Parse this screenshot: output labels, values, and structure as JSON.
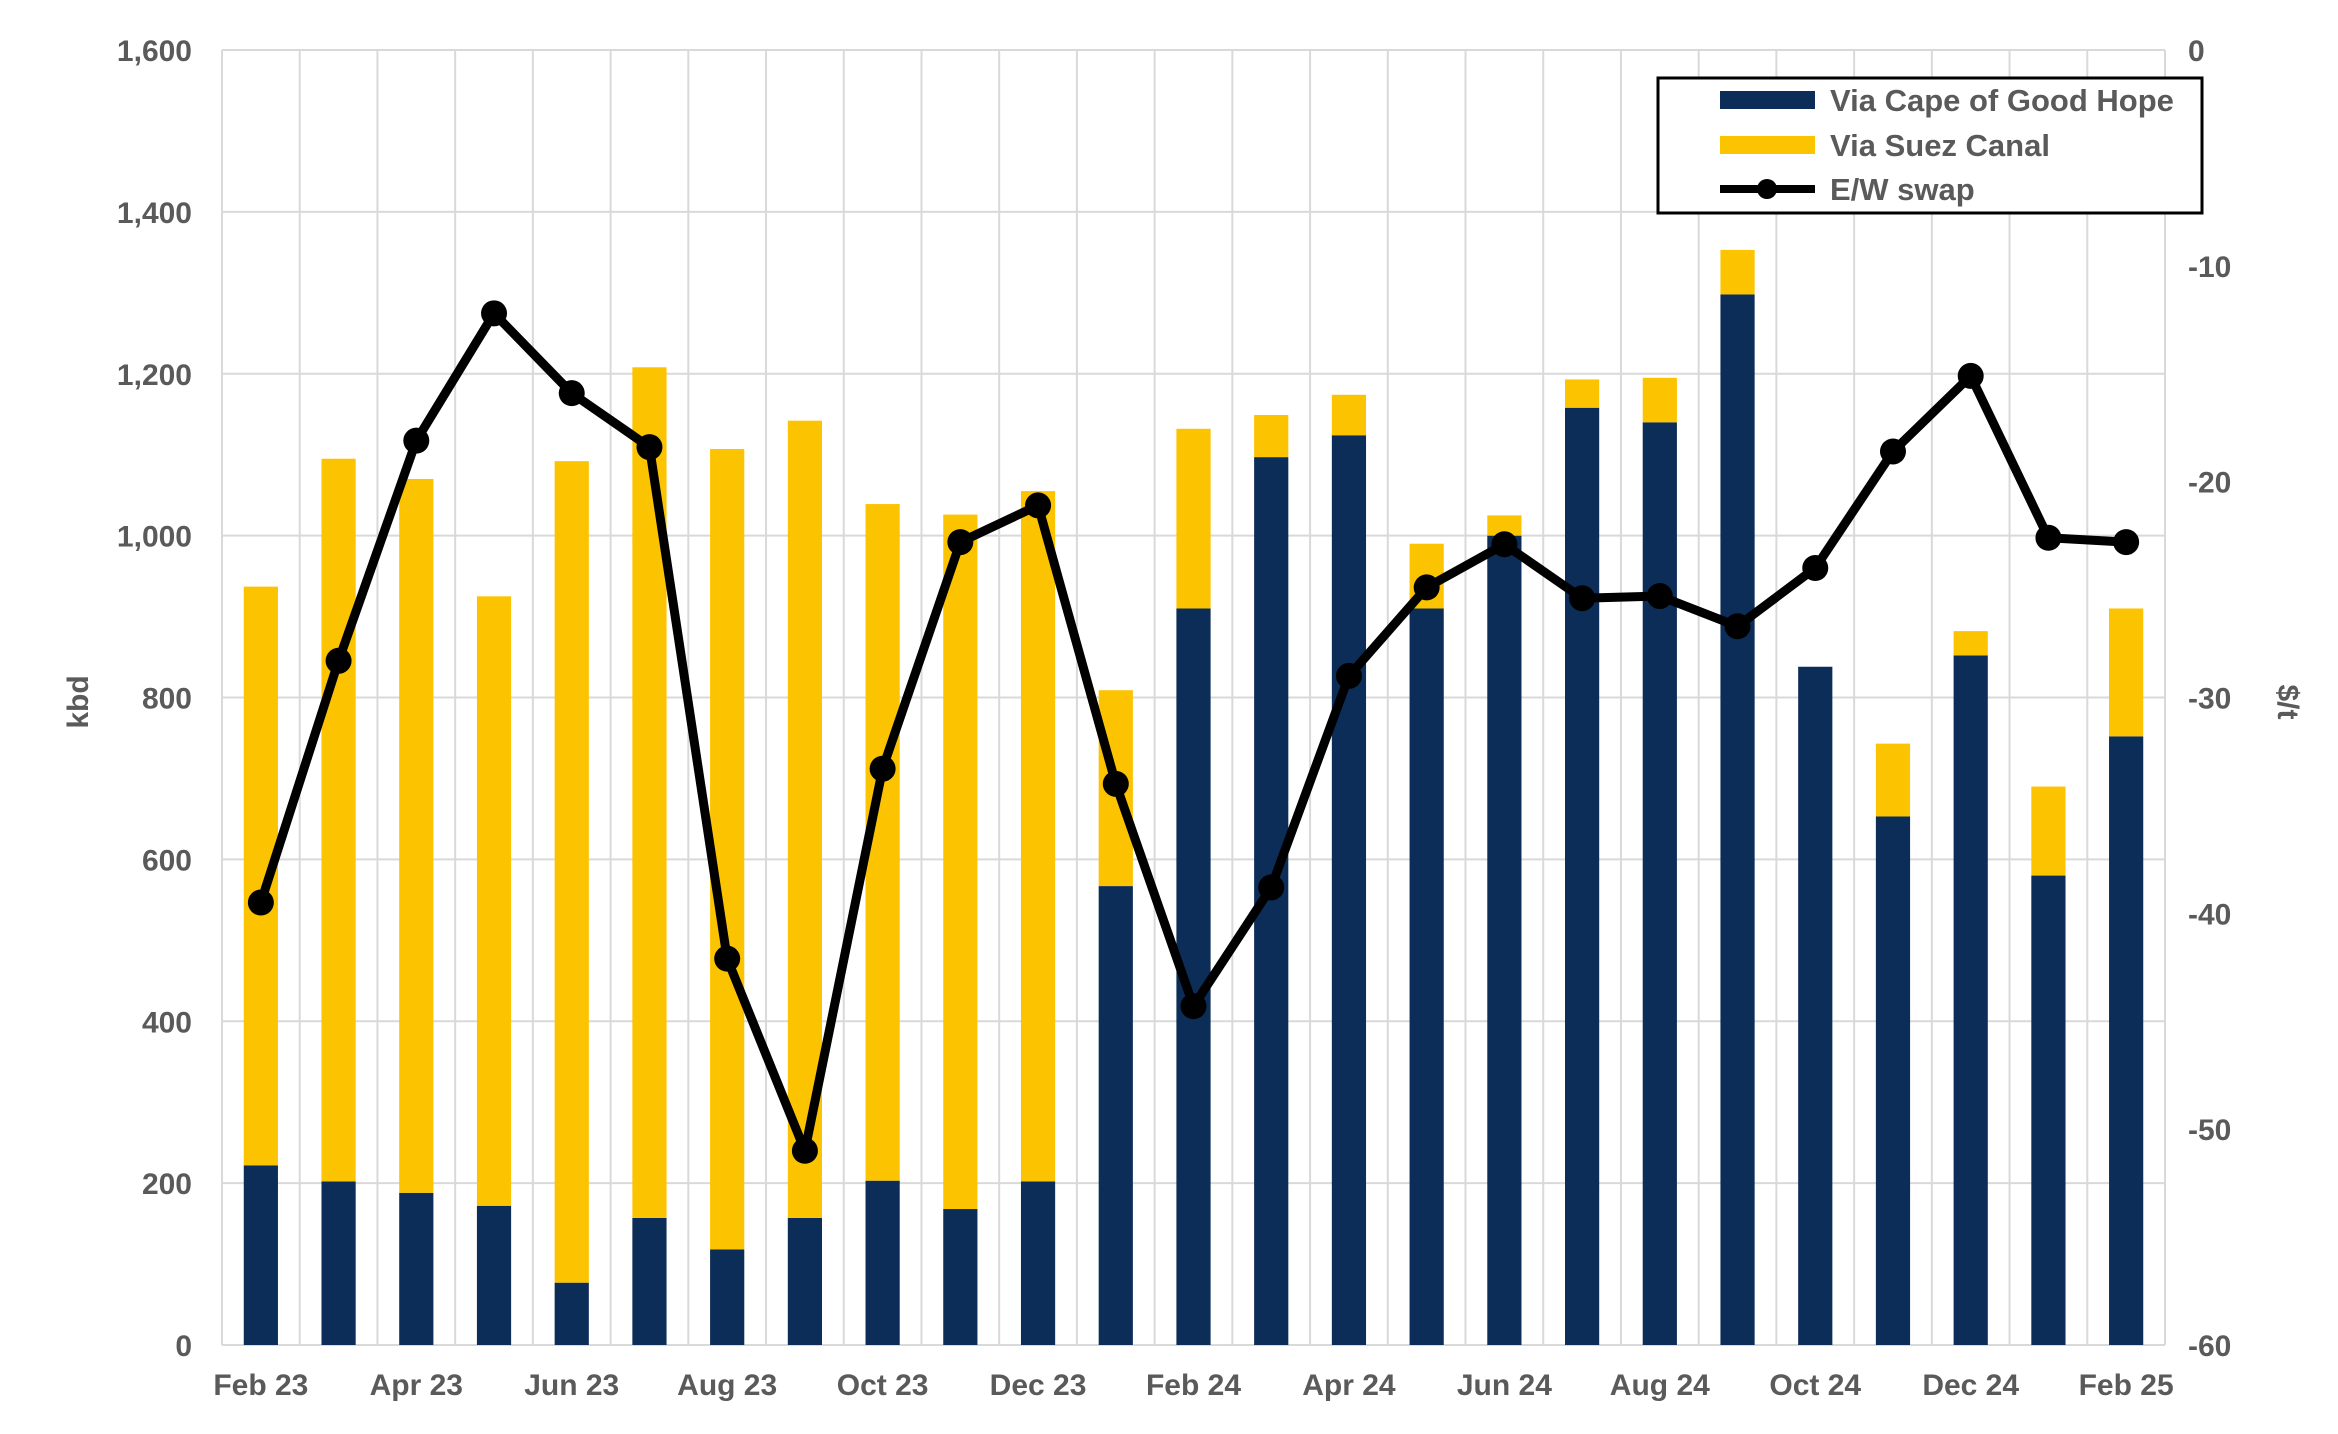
{
  "colors": {
    "cape": "#0c2d57",
    "suez": "#fcc300",
    "swap": "#000000",
    "grid": "#d9d9d9",
    "text": "#5a5a5a"
  },
  "chart_data": {
    "type": "bar",
    "stacked": true,
    "title": "",
    "categories": [
      "Feb 23",
      "Mar 23",
      "Apr 23",
      "May 23",
      "Jun 23",
      "Jul 23",
      "Aug 23",
      "Sep 23",
      "Oct 23",
      "Nov 23",
      "Dec 23",
      "Jan 24",
      "Feb 24",
      "Mar 24",
      "Apr 24",
      "May 24",
      "Jun 24",
      "Jul 24",
      "Aug 24",
      "Sep 24",
      "Oct 24",
      "Nov 24",
      "Dec 24",
      "Jan 25",
      "Feb 25"
    ],
    "xtick_labels": [
      "Feb 23",
      "",
      "Apr 23",
      "",
      "Jun 23",
      "",
      "Aug 23",
      "",
      "Oct 23",
      "",
      "Dec 23",
      "",
      "Feb 24",
      "",
      "Apr 24",
      "",
      "Jun 24",
      "",
      "Aug 24",
      "",
      "Oct 24",
      "",
      "Dec 24",
      "",
      "Feb 25"
    ],
    "ylabel": "kbd",
    "y2label": "$/t",
    "ylim": [
      0,
      1600
    ],
    "y2lim": [
      -60,
      0
    ],
    "yticks": [
      0,
      200,
      400,
      600,
      800,
      1000,
      1200,
      1400,
      1600
    ],
    "yticks_labels": [
      "0",
      "200",
      "400",
      "600",
      "800",
      "1,000",
      "1,200",
      "1,400",
      "1,600"
    ],
    "y2ticks": [
      0,
      -10,
      -20,
      -30,
      -40,
      -50,
      -60
    ],
    "y2ticks_labels": [
      "0",
      "-10",
      "-20",
      "-30",
      "-40",
      "-50",
      "-60"
    ],
    "grid": true,
    "legend_position": "top-right",
    "series": [
      {
        "name": "Via Cape of Good Hope",
        "kind": "bar",
        "axis": "left",
        "values": [
          222,
          202,
          188,
          172,
          77,
          157,
          118,
          157,
          203,
          168,
          202,
          567,
          910,
          1097,
          1124,
          910,
          1000,
          1158,
          1140,
          1298,
          838,
          653,
          852,
          580,
          752
        ]
      },
      {
        "name": "Via Suez Canal",
        "kind": "bar",
        "axis": "left",
        "values": [
          715,
          893,
          882,
          753,
          1015,
          1051,
          989,
          985,
          836,
          858,
          853,
          242,
          222,
          52,
          50,
          80,
          25,
          35,
          55,
          55,
          0,
          90,
          30,
          110,
          158
        ]
      },
      {
        "name": "E/W swap",
        "kind": "line",
        "axis": "right",
        "values": [
          -39.5,
          -28.3,
          -18.1,
          -12.2,
          -15.9,
          -18.4,
          -42.1,
          -51.0,
          -33.3,
          -22.8,
          -21.1,
          -34.0,
          -44.3,
          -38.8,
          -29.0,
          -24.9,
          -22.9,
          -25.4,
          -25.3,
          -26.7,
          -24.0,
          -18.6,
          -15.1,
          -22.6,
          -22.8
        ]
      }
    ]
  }
}
